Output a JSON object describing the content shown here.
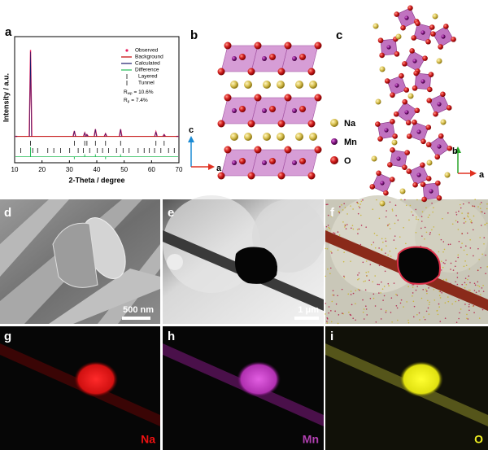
{
  "panel_labels": [
    "a",
    "b",
    "c",
    "d",
    "e",
    "f",
    "g",
    "h",
    "i"
  ],
  "chart_data": {
    "type": "xrd",
    "x_label": "2-Theta / degree",
    "y_label": "Intensity / a.u.",
    "xlim": [
      10,
      70
    ],
    "xticks": [
      10,
      20,
      30,
      40,
      50,
      60,
      70
    ],
    "ylim": [
      0,
      115
    ],
    "y2lim": [
      -2.5,
      50
    ],
    "x": [
      10.5,
      15.8,
      31.8,
      35.6,
      36.4,
      39.5,
      43.2,
      48.7,
      61.6,
      64.6,
      69.5
    ],
    "series": [
      {
        "name": "Observed",
        "color": "#e8205f",
        "values": [
          4,
          100,
          10,
          8,
          6,
          12,
          7,
          12,
          9,
          6,
          4
        ]
      },
      {
        "name": "Background",
        "color": "#c00000",
        "values": [
          4,
          4,
          4,
          4,
          4,
          4,
          4,
          4,
          4,
          4,
          4
        ]
      },
      {
        "name": "Calculated",
        "color": "#1b1b6b",
        "values": [
          4,
          98,
          10,
          8,
          6,
          12,
          7,
          12,
          9,
          6,
          4
        ]
      },
      {
        "name": "Difference",
        "color": "#22bb55",
        "axis": "y2",
        "values": [
          0,
          4,
          -1,
          1,
          0,
          1,
          -1,
          1,
          0,
          0,
          0
        ]
      }
    ],
    "reflections": [
      {
        "name": "Layered",
        "color": "#111111",
        "x": [
          15.8,
          31.8,
          35.6,
          36.4,
          39.5,
          43.2,
          48.7,
          61.6,
          64.6
        ]
      },
      {
        "name": "Tunnel",
        "color": "#111111",
        "x": [
          12.2,
          16.6,
          18.4,
          22.1,
          24.3,
          26.8,
          30.1,
          33.2,
          35.1,
          37.4,
          40.2,
          42.1,
          44.3,
          47.2,
          49.6,
          51.8,
          55.1,
          57.3,
          59.2,
          61.1,
          63.4,
          66.2,
          68.3
        ]
      }
    ],
    "fit_stats": [
      {
        "symbol": "R",
        "subscript": "wp",
        "text": "= 10.6%"
      },
      {
        "symbol": "R",
        "subscript": "p",
        "text": "=  7.4%"
      }
    ]
  },
  "structure_b": {
    "axes": [
      "c",
      "a"
    ]
  },
  "atoms": [
    "Na",
    "Mn",
    "O"
  ],
  "structure_c": {
    "axes": [
      "b",
      "a"
    ]
  },
  "scale_bars": [
    "500 nm",
    "1 μm"
  ],
  "element_maps": [
    "Na",
    "Mn",
    "O"
  ]
}
